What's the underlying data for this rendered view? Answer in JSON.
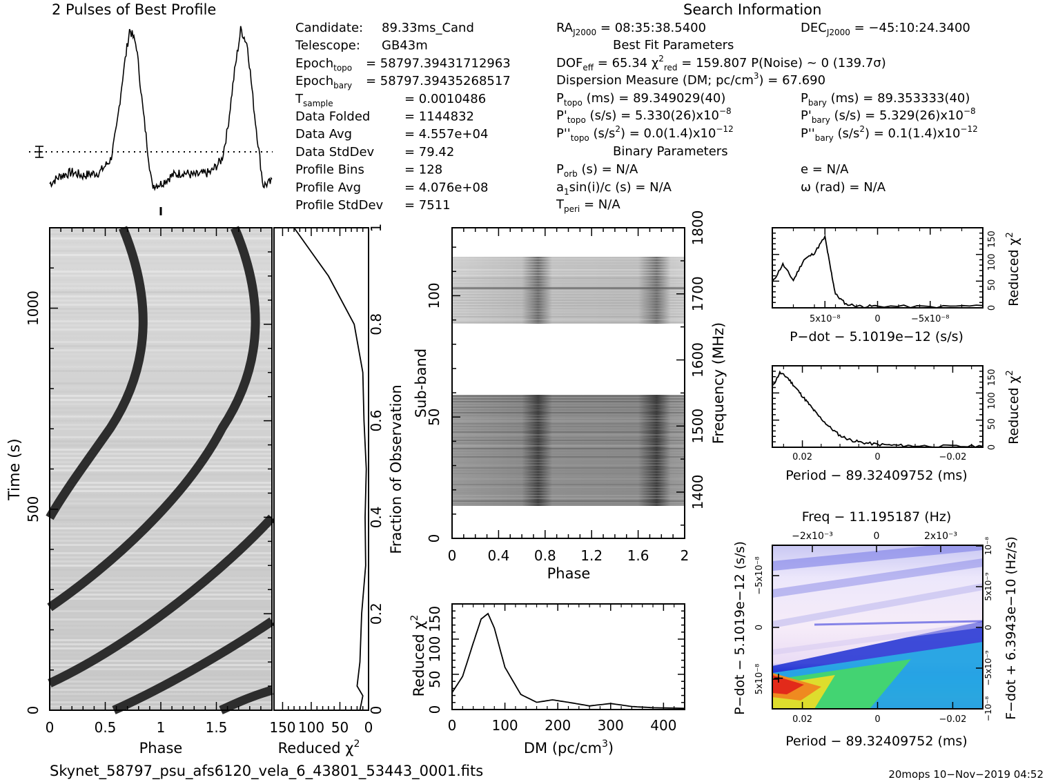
{
  "top": {
    "profile_title": "2 Pulses of Best Profile",
    "search_title": "Search Information"
  },
  "info_left": [
    {
      "label": "Candidate:",
      "sub": "",
      "value": "89.33ms_Cand"
    },
    {
      "label": "Telescope:",
      "sub": "",
      "value": "GB43m"
    },
    {
      "label": "Epoch",
      "sub": "topo",
      "value": "= 58797.39431712963"
    },
    {
      "label": "Epoch",
      "sub": "bary",
      "value": "= 58797.39435268517"
    },
    {
      "label": "T",
      "sub": "sample",
      "value": "=   0.0010486"
    },
    {
      "label": "Data Folded",
      "sub": "",
      "value": "=   1144832"
    },
    {
      "label": "Data Avg",
      "sub": "",
      "value": "=   4.557e+04"
    },
    {
      "label": "Data StdDev",
      "sub": "",
      "value": "=   79.42"
    },
    {
      "label": "Profile Bins",
      "sub": "",
      "value": "=   128"
    },
    {
      "label": "Profile Avg",
      "sub": "",
      "value": "=   4.076e+08"
    },
    {
      "label": "Profile StdDev",
      "sub": "",
      "value": "=   7511"
    }
  ],
  "info_mid": [
    "RA_J2000 = 08:35:38.5400",
    "Best Fit Parameters",
    "DOF_eff = 65.34   χ²_red = 159.807   P(Noise) ~ 0   (139.7σ)",
    "Dispersion Measure (DM; pc/cm³) = 67.690",
    "P_topo (ms) =  89.349029(40)",
    "P'_topo (s/s) =  5.330(26)x10⁻⁸",
    "P''_topo (s/s²) = 0.0(1.4)x10⁻¹²",
    "Binary Parameters",
    "P_orb (s) = N/A",
    "a₁sin(i)/c (s) = N/A",
    "T_peri = N/A"
  ],
  "info_right": [
    "DEC_J2000 = −45:10:24.3400",
    "P_bary (ms) =  89.353333(40)",
    "P'_bary (s/s) =  5.329(26)x10⁻⁸",
    "P''_bary (s/s²) =  0.1(1.4)x10⁻¹²",
    "e = N/A",
    "ω (rad) = N/A"
  ],
  "footer": {
    "filename": "Skynet_58797_psu_afs6120_vela_6_43801_53443_0001.fits",
    "stamp": "20mops 10−Nov−2019 04:52"
  },
  "colors": {
    "ink": "#000000",
    "grey_band": "#3a3a3a"
  },
  "chart_data": [
    {
      "type": "line",
      "title": "2 Pulses of Best Profile",
      "x_phase": [
        0.0,
        0.1,
        0.2,
        0.3,
        0.45,
        0.55,
        0.6,
        0.66,
        0.72,
        0.78,
        0.84,
        0.92,
        1.0,
        1.1,
        1.2,
        1.3,
        1.45,
        1.55,
        1.6,
        1.66,
        1.72,
        1.78,
        1.84,
        1.92,
        2.0
      ],
      "y_norm": [
        0.05,
        0.1,
        0.12,
        0.1,
        0.12,
        0.2,
        0.38,
        0.72,
        1.0,
        0.9,
        0.5,
        0.04,
        0.05,
        0.1,
        0.12,
        0.1,
        0.12,
        0.2,
        0.38,
        0.72,
        1.0,
        0.9,
        0.5,
        0.04,
        0.06
      ]
    },
    {
      "type": "heatmap",
      "xlabel": "Phase",
      "ylabel": "Time (s)",
      "x_ticks": [
        "0",
        "0.5",
        "1",
        "1.5"
      ],
      "y_ticks": [
        "0",
        "500",
        "1000"
      ],
      "xlim": [
        0,
        2
      ],
      "ylim": [
        0,
        1200
      ],
      "right_ticks": [
        "0.2",
        "0.4",
        "0.6",
        "0.8",
        "1"
      ],
      "right_label": "Fraction of Observation"
    },
    {
      "type": "line",
      "xlabel": "Reduced χ²",
      "x_ticks": [
        "150",
        "100",
        "50",
        "0"
      ],
      "fraction": [
        0.0,
        0.03,
        0.05,
        0.1,
        0.2,
        0.3,
        0.4,
        0.5,
        0.6,
        0.7,
        0.8,
        0.9,
        0.95,
        1.0
      ],
      "chi2": [
        15,
        10,
        20,
        15,
        12,
        5,
        6,
        4,
        8,
        10,
        25,
        70,
        100,
        130
      ]
    },
    {
      "type": "heatmap",
      "xlabel": "Phase",
      "ylabel": "Sub-band",
      "right_label": "Frequency (MHz)",
      "x_ticks": [
        "0",
        "0.4",
        "0.8",
        "1.2",
        "1.6",
        "2"
      ],
      "y_ticks": [
        "0",
        "50",
        "100"
      ],
      "right_ticks": [
        "1400",
        "1500",
        "1600",
        "1700",
        "1800"
      ],
      "xlim": [
        0,
        2
      ],
      "ylim": [
        0,
        128
      ]
    },
    {
      "type": "line",
      "xlabel": "DM (pc/cm³)",
      "ylabel": "Reduced χ²",
      "x_ticks": [
        "0",
        "100",
        "200",
        "300",
        "400"
      ],
      "y_ticks": [
        "0",
        "50",
        "100",
        "150"
      ],
      "xlim": [
        0,
        440
      ],
      "ylim": [
        0,
        175
      ],
      "x": [
        0,
        20,
        40,
        55,
        68,
        80,
        100,
        130,
        160,
        190,
        220,
        260,
        300,
        340,
        380,
        440
      ],
      "y": [
        28,
        55,
        110,
        150,
        159,
        135,
        70,
        25,
        12,
        16,
        12,
        6,
        10,
        5,
        3,
        2
      ]
    },
    {
      "type": "line",
      "xlabel": "P-dot − 5.1019e-12 (s/s)",
      "ylabel": "Reduced χ²",
      "x_ticks": [
        "5x10⁻⁸",
        "0",
        "−5x10⁻⁸"
      ],
      "y_ticks": [
        "0",
        "50",
        "100",
        "150"
      ],
      "xlim": [
        1e-07,
        -1e-07
      ],
      "ylim": [
        0,
        175
      ],
      "x": [
        1e-07,
        9e-08,
        8e-08,
        7e-08,
        6e-08,
        5e-08,
        4.5e-08,
        4e-08,
        3e-08,
        1.5e-08,
        0,
        -5e-08,
        -1e-07
      ],
      "y": [
        55,
        95,
        60,
        105,
        120,
        155,
        90,
        30,
        8,
        3,
        4,
        2,
        5
      ]
    },
    {
      "type": "line",
      "xlabel": "Period − 89.32409752 (ms)",
      "ylabel": "Reduced χ²",
      "x_ticks": [
        "0.02",
        "0",
        "−0.02"
      ],
      "y_ticks": [
        "0",
        "50",
        "100",
        "150"
      ],
      "xlim": [
        0.028,
        -0.028
      ],
      "ylim": [
        0,
        175
      ],
      "x": [
        0.028,
        0.026,
        0.024,
        0.022,
        0.02,
        0.018,
        0.016,
        0.013,
        0.01,
        0.007,
        0.004,
        0.0,
        -0.005,
        -0.01,
        -0.02,
        -0.028
      ],
      "y": [
        130,
        160,
        150,
        130,
        110,
        90,
        70,
        45,
        25,
        15,
        10,
        6,
        4,
        3,
        2,
        2
      ]
    },
    {
      "type": "heatmap",
      "title": "Freq − 11.195187 (Hz)",
      "xlabel": "Period − 89.32409752 (ms)",
      "ylabel": "P-dot − 5.1019e-12 (s/s)",
      "right_label": "F-dot + 6.3943e-10 (Hz/s)",
      "top_ticks": [
        "−2x10⁻³",
        "0",
        "2x10⁻³"
      ],
      "x_ticks": [
        "0.02",
        "0",
        "−0.02"
      ],
      "y_ticks": [
        "5x10⁻⁸",
        "0",
        "−5x10⁻⁸"
      ],
      "right_ticks": [
        "−10⁻⁸",
        "−5x10⁻⁹",
        "0",
        "5x10⁻⁹",
        "10⁻⁸"
      ]
    }
  ]
}
